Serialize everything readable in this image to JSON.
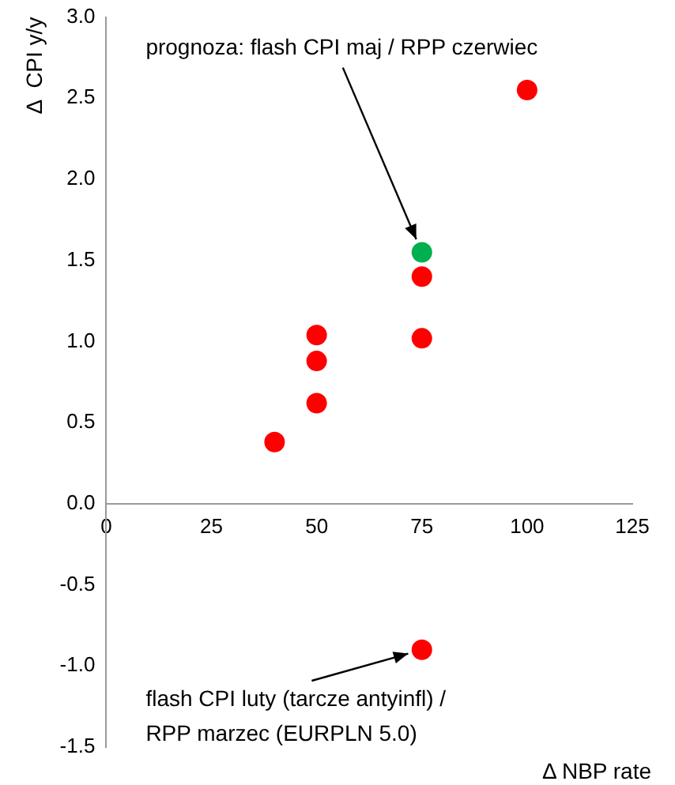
{
  "chart_data": {
    "type": "scatter",
    "xlabel": "Δ NBP rate",
    "ylabel": "Δ  CPI y/y",
    "xlim": [
      0,
      125
    ],
    "xticks": [
      0,
      25,
      50,
      75,
      100,
      125
    ],
    "ylim": [
      -1.5,
      3
    ],
    "yticks": [
      {
        "value": -1.5,
        "label": "-1.5"
      },
      {
        "value": -1,
        "label": "-1.0"
      },
      {
        "value": -0.5,
        "label": "-0.5"
      },
      {
        "value": 0,
        "label": "0.0"
      },
      {
        "value": 0.5,
        "label": "0.5"
      },
      {
        "value": 1,
        "label": "1.0"
      },
      {
        "value": 1.5,
        "label": "1.5"
      },
      {
        "value": 2,
        "label": "2.0"
      },
      {
        "value": 2.5,
        "label": "2.5"
      },
      {
        "value": 3,
        "label": "3.0"
      }
    ],
    "grid": false,
    "marker": "circle",
    "series": [
      {
        "color": "#ff0000",
        "x": [
          100,
          75,
          75,
          50,
          50,
          50,
          40,
          75
        ],
        "values": [
          2.55,
          1.4,
          1.02,
          1.04,
          0.88,
          0.62,
          0.38,
          -0.9
        ]
      },
      {
        "color": "#00b050",
        "x": [
          75
        ],
        "values": [
          1.55
        ]
      }
    ],
    "annotations": [
      {
        "text": "prognoza: flash CPI maj / RPP czerwiec",
        "x": 75,
        "y": 1.55
      },
      {
        "text": "flash CPI luty (tarcze antyinfl) / RPP marzec (EURPLN 5.0)",
        "x": 75,
        "y": -0.9
      }
    ]
  }
}
